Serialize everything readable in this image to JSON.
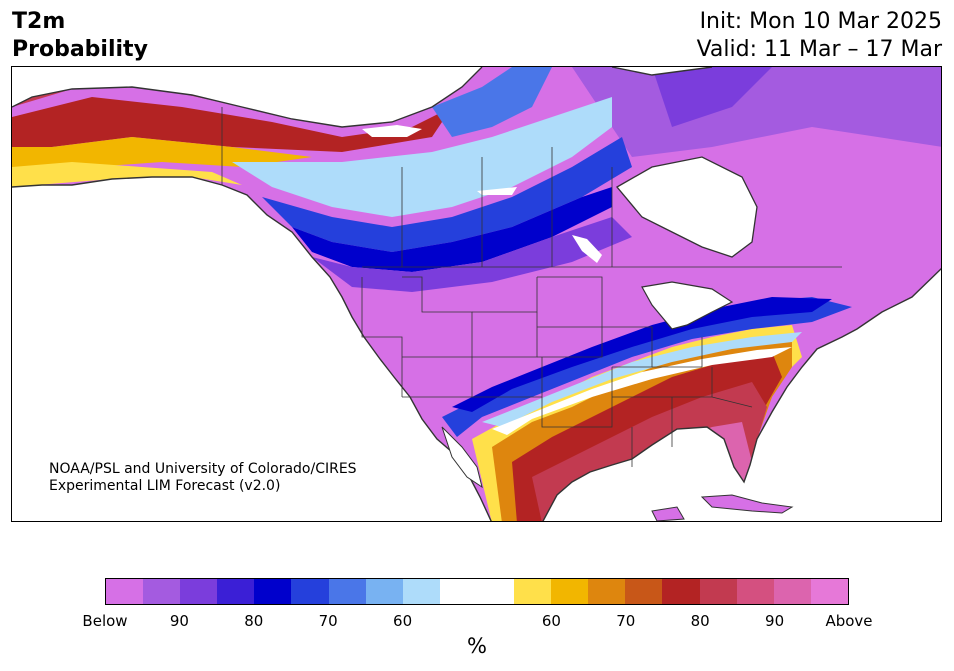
{
  "title": {
    "line1": "T2m",
    "line2": "Probability"
  },
  "init": {
    "line1": "Init: Mon 10 Mar 2025",
    "line2": "Valid: 11 Mar – 17 Mar"
  },
  "credit": {
    "line1": "NOAA/PSL and University of Colorado/CIRES",
    "line2": "Experimental LIM Forecast (v2.0)"
  },
  "colorbar": {
    "colors": [
      "#d670e6",
      "#a45be0",
      "#7b3ddc",
      "#3b1fd6",
      "#0000cc",
      "#2540dc",
      "#4a76e8",
      "#78b2f2",
      "#aedcfa",
      "#ffffff",
      "#ffffff",
      "#ffe04a",
      "#f2b600",
      "#de860e",
      "#c85718",
      "#b32323",
      "#c23a50",
      "#d45080",
      "#dc64ae",
      "#e678d8"
    ],
    "ticks": [
      "Below",
      "90",
      "80",
      "70",
      "60",
      "60",
      "70",
      "80",
      "90",
      "Above"
    ],
    "unit": "%"
  },
  "map": {
    "ocean_color": "#ffffff",
    "land_default": "#d670e6",
    "below_colors": {
      "deep": "#0000cc",
      "mid": "#3b1fd6",
      "light": "#78b2f2",
      "pale": "#aedcfa",
      "purple": "#a45be0"
    },
    "above_colors": {
      "yellow": "#ffe04a",
      "orange": "#f2b600",
      "darkorange": "#de860e",
      "red": "#b32323",
      "rose": "#c23a50",
      "pink": "#dc64ae"
    }
  }
}
